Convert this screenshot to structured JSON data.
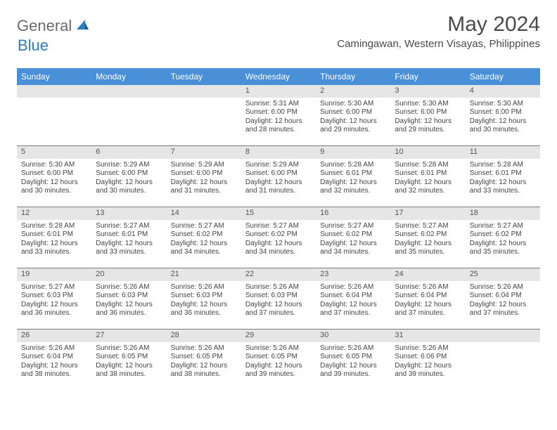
{
  "logo": {
    "part1": "General",
    "part2": "Blue"
  },
  "title": "May 2024",
  "location": "Camingawan, Western Visayas, Philippines",
  "header_color": "#4a90d9",
  "daynames": [
    "Sunday",
    "Monday",
    "Tuesday",
    "Wednesday",
    "Thursday",
    "Friday",
    "Saturday"
  ],
  "weeks": [
    [
      null,
      null,
      null,
      {
        "n": "1",
        "sr": "5:31 AM",
        "ss": "6:00 PM",
        "dl": "12 hours and 28 minutes."
      },
      {
        "n": "2",
        "sr": "5:30 AM",
        "ss": "6:00 PM",
        "dl": "12 hours and 29 minutes."
      },
      {
        "n": "3",
        "sr": "5:30 AM",
        "ss": "6:00 PM",
        "dl": "12 hours and 29 minutes."
      },
      {
        "n": "4",
        "sr": "5:30 AM",
        "ss": "6:00 PM",
        "dl": "12 hours and 30 minutes."
      }
    ],
    [
      {
        "n": "5",
        "sr": "5:30 AM",
        "ss": "6:00 PM",
        "dl": "12 hours and 30 minutes."
      },
      {
        "n": "6",
        "sr": "5:29 AM",
        "ss": "6:00 PM",
        "dl": "12 hours and 30 minutes."
      },
      {
        "n": "7",
        "sr": "5:29 AM",
        "ss": "6:00 PM",
        "dl": "12 hours and 31 minutes."
      },
      {
        "n": "8",
        "sr": "5:29 AM",
        "ss": "6:00 PM",
        "dl": "12 hours and 31 minutes."
      },
      {
        "n": "9",
        "sr": "5:28 AM",
        "ss": "6:01 PM",
        "dl": "12 hours and 32 minutes."
      },
      {
        "n": "10",
        "sr": "5:28 AM",
        "ss": "6:01 PM",
        "dl": "12 hours and 32 minutes."
      },
      {
        "n": "11",
        "sr": "5:28 AM",
        "ss": "6:01 PM",
        "dl": "12 hours and 33 minutes."
      }
    ],
    [
      {
        "n": "12",
        "sr": "5:28 AM",
        "ss": "6:01 PM",
        "dl": "12 hours and 33 minutes."
      },
      {
        "n": "13",
        "sr": "5:27 AM",
        "ss": "6:01 PM",
        "dl": "12 hours and 33 minutes."
      },
      {
        "n": "14",
        "sr": "5:27 AM",
        "ss": "6:02 PM",
        "dl": "12 hours and 34 minutes."
      },
      {
        "n": "15",
        "sr": "5:27 AM",
        "ss": "6:02 PM",
        "dl": "12 hours and 34 minutes."
      },
      {
        "n": "16",
        "sr": "5:27 AM",
        "ss": "6:02 PM",
        "dl": "12 hours and 34 minutes."
      },
      {
        "n": "17",
        "sr": "5:27 AM",
        "ss": "6:02 PM",
        "dl": "12 hours and 35 minutes."
      },
      {
        "n": "18",
        "sr": "5:27 AM",
        "ss": "6:02 PM",
        "dl": "12 hours and 35 minutes."
      }
    ],
    [
      {
        "n": "19",
        "sr": "5:27 AM",
        "ss": "6:03 PM",
        "dl": "12 hours and 36 minutes."
      },
      {
        "n": "20",
        "sr": "5:26 AM",
        "ss": "6:03 PM",
        "dl": "12 hours and 36 minutes."
      },
      {
        "n": "21",
        "sr": "5:26 AM",
        "ss": "6:03 PM",
        "dl": "12 hours and 36 minutes."
      },
      {
        "n": "22",
        "sr": "5:26 AM",
        "ss": "6:03 PM",
        "dl": "12 hours and 37 minutes."
      },
      {
        "n": "23",
        "sr": "5:26 AM",
        "ss": "6:04 PM",
        "dl": "12 hours and 37 minutes."
      },
      {
        "n": "24",
        "sr": "5:26 AM",
        "ss": "6:04 PM",
        "dl": "12 hours and 37 minutes."
      },
      {
        "n": "25",
        "sr": "5:26 AM",
        "ss": "6:04 PM",
        "dl": "12 hours and 37 minutes."
      }
    ],
    [
      {
        "n": "26",
        "sr": "5:26 AM",
        "ss": "6:04 PM",
        "dl": "12 hours and 38 minutes."
      },
      {
        "n": "27",
        "sr": "5:26 AM",
        "ss": "6:05 PM",
        "dl": "12 hours and 38 minutes."
      },
      {
        "n": "28",
        "sr": "5:26 AM",
        "ss": "6:05 PM",
        "dl": "12 hours and 38 minutes."
      },
      {
        "n": "29",
        "sr": "5:26 AM",
        "ss": "6:05 PM",
        "dl": "12 hours and 39 minutes."
      },
      {
        "n": "30",
        "sr": "5:26 AM",
        "ss": "6:05 PM",
        "dl": "12 hours and 39 minutes."
      },
      {
        "n": "31",
        "sr": "5:26 AM",
        "ss": "6:06 PM",
        "dl": "12 hours and 39 minutes."
      },
      null
    ]
  ],
  "labels": {
    "sunrise": "Sunrise:",
    "sunset": "Sunset:",
    "daylight": "Daylight:"
  }
}
